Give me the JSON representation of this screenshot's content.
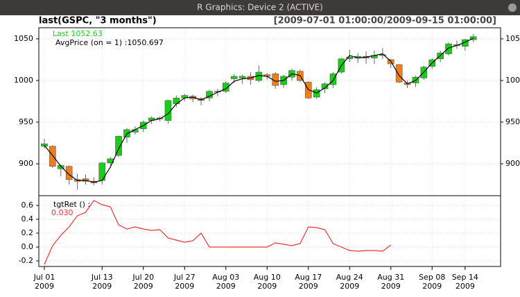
{
  "window": {
    "title": "R Graphics: Device 2 (ACTIVE)"
  },
  "chart_data": [
    {
      "type": "candlestick",
      "title": "last(GSPC, \"3 months\")",
      "subtitle": "[2009-07-01 01:00:00/2009-09-15 01:00:00]",
      "last_label": "Last 1052.63",
      "up_color": "#17cf17",
      "down_color": "#f07f1a",
      "xlim": [
        -0.67,
        55.3
      ],
      "ylim": [
        861.7,
        1063.3
      ],
      "yticks": [
        900,
        950,
        1000,
        1050
      ],
      "grid": true,
      "open": [
        921,
        921,
        894,
        897,
        881,
        882,
        879,
        880,
        901,
        910,
        932,
        938,
        942,
        952,
        954,
        952,
        972,
        979,
        981,
        978,
        979,
        987,
        987,
        1002,
        1003,
        1005,
        1000,
        1007,
        1008,
        995,
        1004,
        1011,
        998,
        980,
        990,
        995,
        1010,
        1026,
        1027,
        1029,
        1027,
        1030,
        1025,
        1019,
        997,
        997,
        1003,
        1017,
        1026,
        1032,
        1042,
        1041,
        1049
      ],
      "high": [
        930,
        922,
        899,
        898,
        888,
        887,
        884,
        902,
        908,
        934,
        943,
        945,
        952,
        957,
        957,
        977,
        982,
        984,
        983,
        980,
        989,
        990,
        999,
        1008,
        1007,
        1010,
        1018,
        1009,
        1010,
        1007,
        1014,
        1013,
        999,
        992,
        998,
        1010,
        1027,
        1037,
        1033,
        1035,
        1036,
        1039,
        1026,
        1020,
        1000,
        1006,
        1018,
        1027,
        1036,
        1046,
        1048,
        1050,
        1056
      ],
      "low": [
        918,
        895,
        885,
        875,
        869,
        875,
        874,
        875,
        898,
        908,
        925,
        935,
        938,
        948,
        951,
        948,
        968,
        975,
        974,
        970,
        975,
        981,
        985,
        997,
        996,
        995,
        998,
        1001,
        990,
        991,
        1000,
        998,
        978,
        978,
        985,
        991,
        1008,
        1022,
        1021,
        1020,
        1020,
        1026,
        1015,
        997,
        991,
        992,
        1001,
        1014,
        1022,
        1030,
        1038,
        1036,
        1046
      ],
      "close": [
        924,
        897,
        898,
        881,
        879,
        879,
        877,
        901,
        906,
        933,
        941,
        941,
        950,
        955,
        955,
        976,
        979,
        982,
        978,
        976,
        987,
        987,
        997,
        1005,
        1005,
        1001,
        1010,
        1005,
        994,
        1005,
        1012,
        1000,
        979,
        989,
        996,
        1008,
        1026,
        1028,
        1029,
        1027,
        1030,
        1031,
        1020,
        998,
        995,
        1004,
        1016,
        1025,
        1033,
        1044,
        1043,
        1049,
        1052.63
      ],
      "series": [
        {
          "name": "AvgPrice (on = 1) :1050.697",
          "color": "#000000",
          "values": [
            922,
            910,
            897,
            887,
            880,
            880,
            878,
            880,
            896,
            918,
            936,
            941,
            946,
            952,
            954,
            960,
            972,
            979,
            980,
            977,
            981,
            986,
            990,
            999,
            1002,
            1003,
            1006,
            1005,
            999,
            1000,
            1008,
            1006,
            989,
            985,
            991,
            1000,
            1018,
            1030,
            1027,
            1028,
            1030,
            1032,
            1023,
            1006,
            996,
            1000,
            1010,
            1021,
            1030,
            1039,
            1042,
            1046,
            1050.697
          ]
        }
      ]
    },
    {
      "type": "line",
      "xlim": [
        -0.67,
        55.3
      ],
      "ylim": [
        -0.28,
        0.74
      ],
      "yticks": [
        -0.2,
        {
          "value": 0,
          "label": "0.0"
        },
        0.2,
        0.4,
        0.6
      ],
      "grid": true,
      "xticks": [
        {
          "value": 0,
          "label": [
            "Jul 01",
            "2009"
          ]
        },
        {
          "value": 7,
          "label": [
            "Jul 13",
            "2009"
          ]
        },
        {
          "value": 12,
          "label": [
            "Jul 20",
            "2009"
          ]
        },
        {
          "value": 17,
          "label": [
            "Jul 27",
            "2009"
          ]
        },
        {
          "value": 22,
          "label": [
            "Aug 03",
            "2009"
          ]
        },
        {
          "value": 27,
          "label": [
            "Aug 10",
            "2009"
          ]
        },
        {
          "value": 32,
          "label": [
            "Aug 17",
            "2009"
          ]
        },
        {
          "value": 37,
          "label": [
            "Aug 24",
            "2009"
          ]
        },
        {
          "value": 42,
          "label": [
            "Aug 31",
            "2009"
          ]
        },
        {
          "value": 47,
          "label": [
            "Sep 08",
            "2009"
          ]
        },
        {
          "value": 51,
          "label": [
            "Sep 14",
            "2009"
          ]
        }
      ],
      "series": [
        {
          "name": "tgtRet () :",
          "value_label": "0.030",
          "color": "#f03030",
          "values": [
            -0.25,
            0.02,
            0.17,
            0.29,
            0.45,
            0.5,
            0.67,
            0.61,
            0.58,
            0.32,
            0.26,
            0.29,
            0.26,
            0.24,
            0.25,
            0.13,
            0.1,
            0.07,
            0.09,
            0.2,
            0,
            0,
            0,
            0,
            0,
            0,
            0,
            0,
            0.06,
            0.04,
            0.02,
            0.05,
            0.29,
            0.28,
            0.25,
            0.05,
            0,
            -0.05,
            -0.06,
            -0.05,
            -0.05,
            -0.06,
            0.03,
            null,
            null,
            null,
            null,
            null,
            null,
            null,
            null,
            null,
            null
          ]
        }
      ]
    }
  ]
}
